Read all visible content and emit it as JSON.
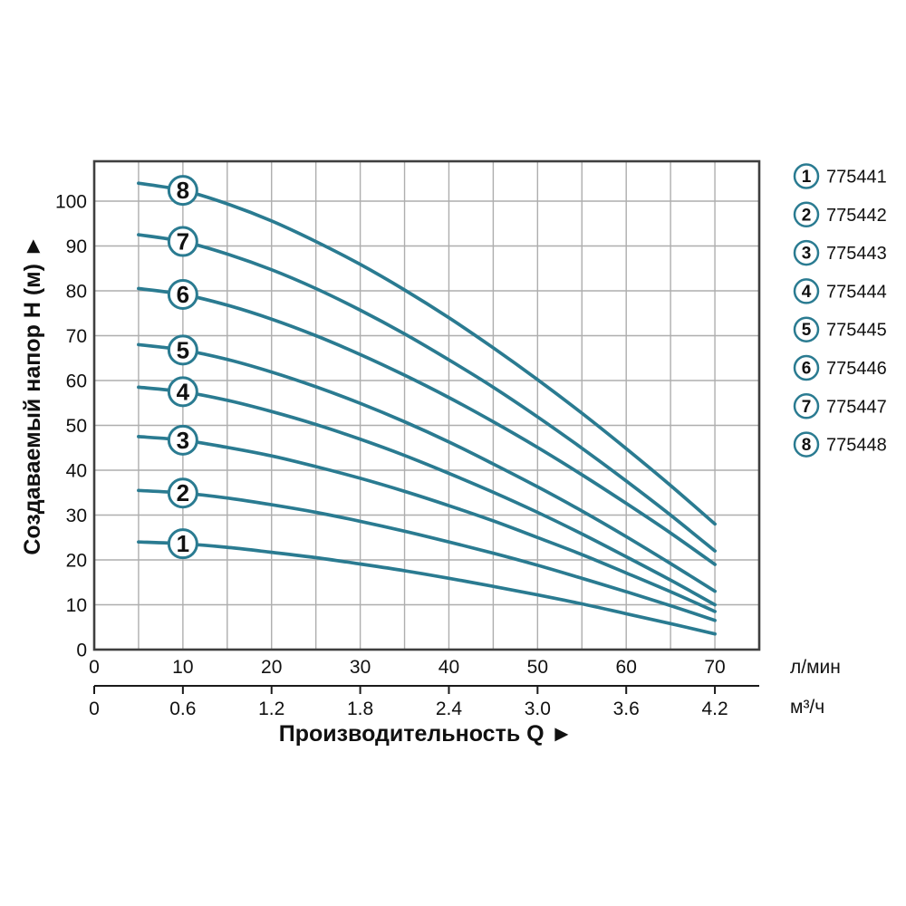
{
  "axes": {
    "y_title": "Создаваемый напор Н (м) ►",
    "x_title": "Производительность Q ►",
    "x_unit_primary": "л/мин",
    "x_unit_secondary": "м³/ч"
  },
  "colors": {
    "curve": "#2a7b91",
    "grid": "#aeaeae",
    "frame": "#3f3f3f",
    "axis": "#1a1a1a",
    "text": "#111111",
    "badge_fill": "#ffffff"
  },
  "chart_data": {
    "type": "line",
    "title": "",
    "xlabel": "Производительность Q",
    "ylabel": "Создаваемый напор Н (м)",
    "x_units": [
      "л/мин",
      "м³/ч"
    ],
    "xlim_lmin": [
      0,
      75
    ],
    "ylim": [
      0,
      110
    ],
    "grid": true,
    "grid_step_x_lmin": 5,
    "grid_step_y_m": 10,
    "y_ticks": [
      "0",
      "10",
      "20",
      "30",
      "40",
      "50",
      "60",
      "70",
      "80",
      "90",
      "100"
    ],
    "x_ticks_lmin": [
      "0",
      "10",
      "20",
      "30",
      "40",
      "50",
      "60",
      "70"
    ],
    "x_ticks_m3h": [
      "0",
      "0.6",
      "1.2",
      "1.8",
      "2.4",
      "3.0",
      "3.6",
      "4.2"
    ],
    "legend_position": "right",
    "curve_label_at_q_lmin": 10,
    "q_lmin": [
      5,
      10,
      15,
      20,
      25,
      30,
      35,
      40,
      45,
      50,
      55,
      60,
      65,
      70
    ],
    "series": [
      {
        "label": "1",
        "code": "775441",
        "head_m": [
          24,
          23.6,
          22.8,
          21.7,
          20.5,
          19.1,
          17.6,
          15.9,
          14.1,
          12.2,
          10.2,
          8,
          5.8,
          3.5
        ]
      },
      {
        "label": "2",
        "code": "775442",
        "head_m": [
          35.5,
          34.9,
          33.8,
          32.3,
          30.6,
          28.6,
          26.4,
          24,
          21.5,
          18.8,
          15.9,
          12.9,
          9.8,
          6.5
        ]
      },
      {
        "label": "3",
        "code": "775443",
        "head_m": [
          47.5,
          46.7,
          45.1,
          43.2,
          40.8,
          38.2,
          35.3,
          32.1,
          28.7,
          25,
          21.2,
          17.1,
          12.9,
          8.5
        ]
      },
      {
        "label": "4",
        "code": "775444",
        "head_m": [
          58.5,
          57.5,
          55.6,
          53.1,
          50.2,
          46.9,
          43.3,
          39.3,
          35.1,
          30.6,
          25.8,
          20.7,
          15.5,
          10
        ]
      },
      {
        "label": "5",
        "code": "775445",
        "head_m": [
          68,
          66.8,
          64.7,
          61.9,
          58.6,
          54.9,
          50.8,
          46.3,
          41.4,
          36.3,
          30.9,
          25.2,
          19.2,
          13
        ]
      },
      {
        "label": "6",
        "code": "775446",
        "head_m": [
          80.5,
          79.2,
          76.8,
          73.7,
          70,
          65.8,
          61.2,
          56.2,
          50.8,
          45.1,
          39,
          32.6,
          26,
          19
        ]
      },
      {
        "label": "7",
        "code": "775447",
        "head_m": [
          92.5,
          91,
          88.2,
          84.7,
          80.5,
          75.7,
          70.4,
          64.6,
          58.5,
          51.9,
          44.9,
          37.6,
          30,
          22
        ]
      },
      {
        "label": "8",
        "code": "775448",
        "head_m": [
          104,
          102.4,
          99.4,
          95.6,
          91,
          85.9,
          80.2,
          74,
          67.3,
          60.2,
          52.7,
          44.8,
          36.6,
          28
        ]
      }
    ]
  }
}
